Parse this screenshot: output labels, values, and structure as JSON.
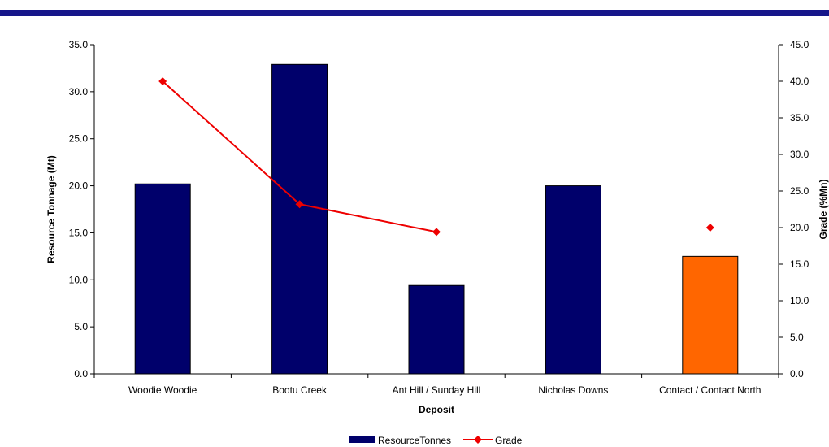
{
  "colors": {
    "top_bar": "#16168a",
    "bar_primary": "#00006b",
    "bar_highlight": "#ff6600",
    "grade_line": "#ee0000",
    "axis": "#000000"
  },
  "chart_data": {
    "type": "bar",
    "categories": [
      "Woodie Woodie",
      "Bootu Creek",
      "Ant Hill / Sunday Hill",
      "Nicholas Downs",
      "Contact / Contact North"
    ],
    "series": [
      {
        "name": "ResourceTonnes",
        "type": "bar",
        "axis": "left",
        "values": [
          20.2,
          32.9,
          9.4,
          20.0,
          12.5
        ],
        "highlight_index": 4
      },
      {
        "name": "Grade",
        "type": "line",
        "axis": "right",
        "values": [
          40.0,
          23.2,
          19.4,
          null,
          20.0
        ],
        "marker": "diamond"
      }
    ],
    "xlabel": "Deposit",
    "ylabel": "Resource Tonnage (Mt)",
    "y2label": "Grade (%Mn)",
    "ylim": [
      0,
      35
    ],
    "y2lim": [
      0,
      45
    ],
    "yticks": [
      "0.0",
      "5.0",
      "10.0",
      "15.0",
      "20.0",
      "25.0",
      "30.0",
      "35.0"
    ],
    "y2ticks": [
      "0.0",
      "5.0",
      "10.0",
      "15.0",
      "20.0",
      "25.0",
      "30.0",
      "35.0",
      "40.0",
      "45.0"
    ],
    "grid": false,
    "legend_position": "bottom"
  }
}
